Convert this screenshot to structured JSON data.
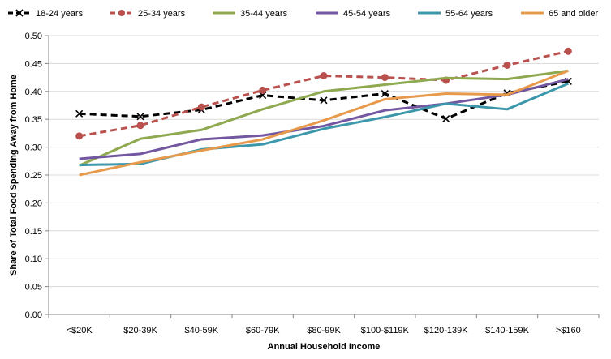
{
  "chart_data": {
    "type": "line",
    "xlabel": "Annual Household Income",
    "ylabel": "Share of Total Food Spending Away from Home",
    "categories": [
      "<$20K",
      "$20-39K",
      "$40-59K",
      "$60-79K",
      "$80-99K",
      "$100-$119K",
      "$120-139K",
      "$140-159K",
      ">$160"
    ],
    "ylim": [
      0,
      0.5
    ],
    "yticks": [
      "0.00",
      "0.05",
      "0.10",
      "0.15",
      "0.20",
      "0.25",
      "0.30",
      "0.35",
      "0.40",
      "0.45",
      "0.50"
    ],
    "grid": "horizontal",
    "legend_position": "top",
    "series": [
      {
        "name": "18-24 years",
        "color": "#000000",
        "dash": "dashed",
        "marker": "x",
        "values": [
          0.36,
          0.355,
          0.367,
          0.393,
          0.384,
          0.396,
          0.351,
          0.397,
          0.418
        ]
      },
      {
        "name": "25-34 years",
        "color": "#b9514e",
        "dash": "dashed",
        "marker": "circle",
        "values": [
          0.32,
          0.339,
          0.372,
          0.402,
          0.428,
          0.425,
          0.42,
          0.447,
          0.472
        ]
      },
      {
        "name": "35-44 years",
        "color": "#8ea94f",
        "dash": "solid",
        "marker": "none",
        "values": [
          0.267,
          0.315,
          0.331,
          0.368,
          0.4,
          0.412,
          0.424,
          0.422,
          0.437
        ]
      },
      {
        "name": "45-54 years",
        "color": "#7357a1",
        "dash": "solid",
        "marker": "none",
        "values": [
          0.279,
          0.288,
          0.314,
          0.321,
          0.338,
          0.366,
          0.378,
          0.394,
          0.422
        ]
      },
      {
        "name": "55-64 years",
        "color": "#3d97ab",
        "dash": "solid",
        "marker": "none",
        "values": [
          0.268,
          0.27,
          0.296,
          0.305,
          0.333,
          0.354,
          0.378,
          0.368,
          0.414
        ]
      },
      {
        "name": "65 and older",
        "color": "#e89a4c",
        "dash": "solid",
        "marker": "none",
        "values": [
          0.25,
          0.273,
          0.294,
          0.314,
          0.348,
          0.386,
          0.396,
          0.394,
          0.437
        ]
      }
    ]
  }
}
